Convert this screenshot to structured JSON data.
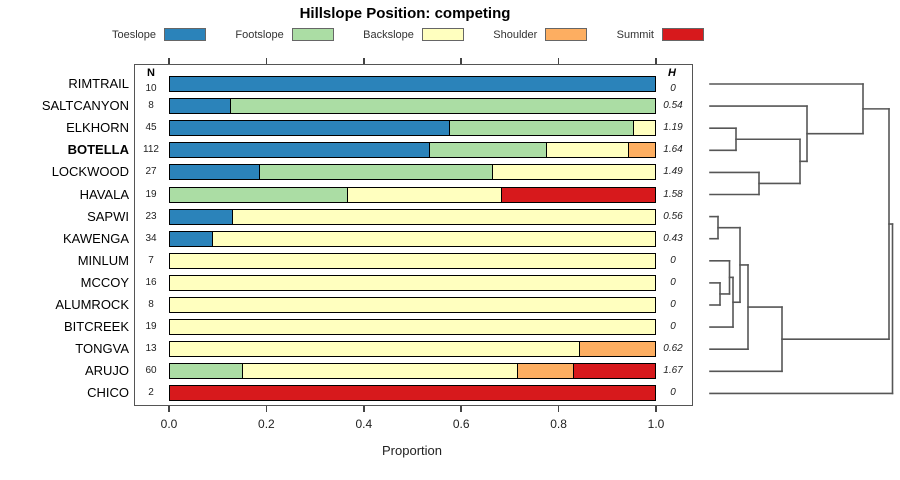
{
  "title": "Hillslope Position: competing",
  "legend": {
    "items": [
      {
        "label": "Toeslope",
        "color": "#2B83BA"
      },
      {
        "label": "Footslope",
        "color": "#ABDDA4"
      },
      {
        "label": "Backslope",
        "color": "#FFFFBF"
      },
      {
        "label": "Shoulder",
        "color": "#FDAE61"
      },
      {
        "label": "Summit",
        "color": "#D7191C"
      }
    ]
  },
  "columns": {
    "n_header": "N",
    "h_header": "H"
  },
  "axis": {
    "ticks": [
      "0.0",
      "0.2",
      "0.4",
      "0.6",
      "0.8",
      "1.0"
    ],
    "label": "Proportion"
  },
  "chart_data": {
    "type": "bar",
    "subtype": "horizontal-stacked-proportion",
    "title": "Hillslope Position: competing",
    "xlabel": "Proportion",
    "xlim": [
      0,
      1
    ],
    "grid": false,
    "legend_position": "top",
    "categories": [
      "Toeslope",
      "Footslope",
      "Backslope",
      "Shoulder",
      "Summit"
    ],
    "colors": {
      "Toeslope": "#2B83BA",
      "Footslope": "#ABDDA4",
      "Backslope": "#FFFFBF",
      "Shoulder": "#FDAE61",
      "Summit": "#D7191C"
    },
    "rows": [
      {
        "name": "RIMTRAIL",
        "bold": false,
        "n": "10",
        "h": "0",
        "segments": [
          {
            "c": "Toeslope",
            "v": 1.0
          }
        ]
      },
      {
        "name": "SALTCANYON",
        "bold": false,
        "n": "8",
        "h": "0.54",
        "segments": [
          {
            "c": "Toeslope",
            "v": 0.125
          },
          {
            "c": "Footslope",
            "v": 0.875
          }
        ]
      },
      {
        "name": "ELKHORN",
        "bold": false,
        "n": "45",
        "h": "1.19",
        "segments": [
          {
            "c": "Toeslope",
            "v": 0.578
          },
          {
            "c": "Footslope",
            "v": 0.378
          },
          {
            "c": "Backslope",
            "v": 0.044
          }
        ]
      },
      {
        "name": "BOTELLA",
        "bold": true,
        "n": "112",
        "h": "1.64",
        "segments": [
          {
            "c": "Toeslope",
            "v": 0.536
          },
          {
            "c": "Footslope",
            "v": 0.241
          },
          {
            "c": "Backslope",
            "v": 0.17
          },
          {
            "c": "Shoulder",
            "v": 0.053
          }
        ]
      },
      {
        "name": "LOCKWOOD",
        "bold": false,
        "n": "27",
        "h": "1.49",
        "segments": [
          {
            "c": "Toeslope",
            "v": 0.185
          },
          {
            "c": "Footslope",
            "v": 0.482
          },
          {
            "c": "Backslope",
            "v": 0.333
          }
        ]
      },
      {
        "name": "HAVALA",
        "bold": false,
        "n": "19",
        "h": "1.58",
        "segments": [
          {
            "c": "Footslope",
            "v": 0.368
          },
          {
            "c": "Backslope",
            "v": 0.316
          },
          {
            "c": "Summit",
            "v": 0.316
          }
        ]
      },
      {
        "name": "SAPWI",
        "bold": false,
        "n": "23",
        "h": "0.56",
        "segments": [
          {
            "c": "Toeslope",
            "v": 0.13
          },
          {
            "c": "Backslope",
            "v": 0.87
          }
        ]
      },
      {
        "name": "KAWENGA",
        "bold": false,
        "n": "34",
        "h": "0.43",
        "segments": [
          {
            "c": "Toeslope",
            "v": 0.088
          },
          {
            "c": "Backslope",
            "v": 0.912
          }
        ]
      },
      {
        "name": "MINLUM",
        "bold": false,
        "n": "7",
        "h": "0",
        "segments": [
          {
            "c": "Backslope",
            "v": 1.0
          }
        ]
      },
      {
        "name": "MCCOY",
        "bold": false,
        "n": "16",
        "h": "0",
        "segments": [
          {
            "c": "Backslope",
            "v": 1.0
          }
        ]
      },
      {
        "name": "ALUMROCK",
        "bold": false,
        "n": "8",
        "h": "0",
        "segments": [
          {
            "c": "Backslope",
            "v": 1.0
          }
        ]
      },
      {
        "name": "BITCREEK",
        "bold": false,
        "n": "19",
        "h": "0",
        "segments": [
          {
            "c": "Backslope",
            "v": 1.0
          }
        ]
      },
      {
        "name": "TONGVA",
        "bold": false,
        "n": "13",
        "h": "0.62",
        "segments": [
          {
            "c": "Backslope",
            "v": 0.846
          },
          {
            "c": "Shoulder",
            "v": 0.154
          }
        ]
      },
      {
        "name": "ARUJO",
        "bold": false,
        "n": "60",
        "h": "1.67",
        "segments": [
          {
            "c": "Footslope",
            "v": 0.15
          },
          {
            "c": "Backslope",
            "v": 0.567
          },
          {
            "c": "Shoulder",
            "v": 0.117
          },
          {
            "c": "Summit",
            "v": 0.167
          }
        ]
      },
      {
        "name": "CHICO",
        "bold": false,
        "n": "2",
        "h": "0",
        "segments": [
          {
            "c": "Summit",
            "v": 1.0
          }
        ]
      }
    ],
    "dendrogram": {
      "orientation": "right",
      "tree": {
        "x": 892.5,
        "children": [
          {
            "x": 889,
            "children": [
              {
                "x": 863,
                "children": [
                  {
                    "leaf": "RIMTRAIL"
                  },
                  {
                    "x": 807,
                    "children": [
                      {
                        "leaf": "SALTCANYON"
                      },
                      {
                        "x": 800,
                        "children": [
                          {
                            "x": 736,
                            "children": [
                              {
                                "leaf": "ELKHORN"
                              },
                              {
                                "leaf": "BOTELLA"
                              }
                            ]
                          },
                          {
                            "x": 759,
                            "children": [
                              {
                                "leaf": "LOCKWOOD"
                              },
                              {
                                "leaf": "HAVALA"
                              }
                            ]
                          }
                        ]
                      }
                    ]
                  }
                ]
              },
              {
                "x": 782,
                "children": [
                  {
                    "x": 748,
                    "children": [
                      {
                        "x": 740,
                        "children": [
                          {
                            "x": 718,
                            "children": [
                              {
                                "leaf": "SAPWI"
                              },
                              {
                                "leaf": "KAWENGA"
                              }
                            ]
                          },
                          {
                            "x": 733,
                            "children": [
                              {
                                "x": 729.5,
                                "children": [
                                  {
                                    "leaf": "MINLUM"
                                  },
                                  {
                                    "x": 720,
                                    "children": [
                                      {
                                        "leaf": "MCCOY"
                                      },
                                      {
                                        "leaf": "ALUMROCK"
                                      }
                                    ]
                                  }
                                ]
                              },
                              {
                                "leaf": "BITCREEK"
                              }
                            ]
                          }
                        ]
                      },
                      {
                        "leaf": "TONGVA"
                      }
                    ]
                  },
                  {
                    "leaf": "ARUJO"
                  }
                ]
              }
            ]
          },
          {
            "leaf": "CHICO"
          }
        ]
      }
    }
  }
}
